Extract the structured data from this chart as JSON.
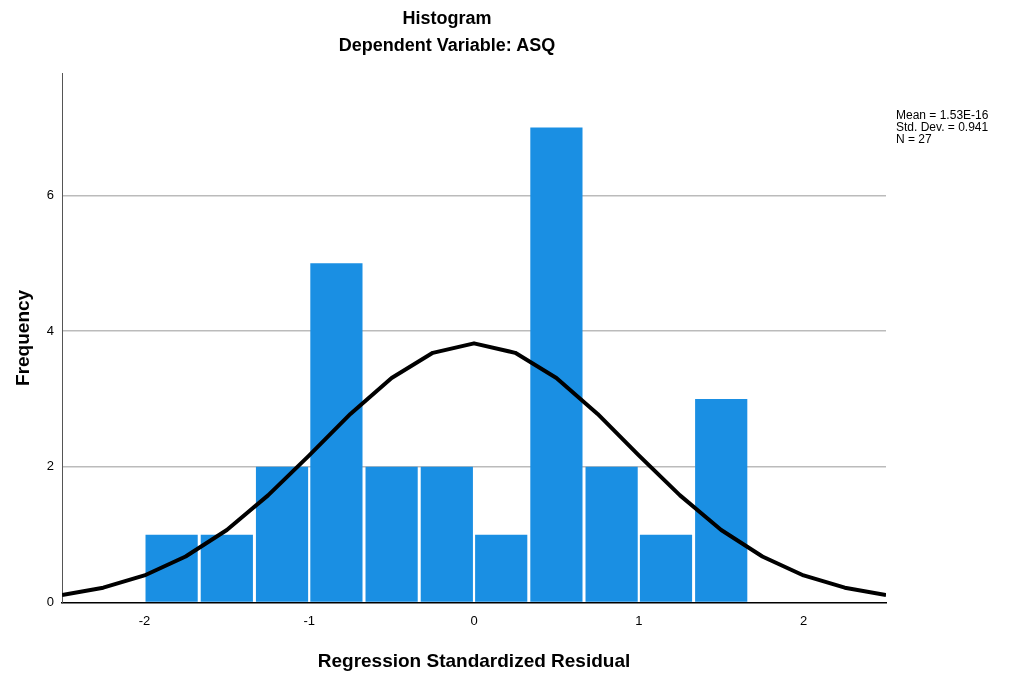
{
  "chart_data": {
    "type": "histogram",
    "title": "Histogram",
    "subtitle": "Dependent Variable: ASQ",
    "xlabel": "Regression Standardized Residual",
    "ylabel": "Frequency",
    "bins": [
      -2,
      -1.67,
      -1.33,
      -1,
      -0.67,
      -0.33,
      0,
      0.33,
      0.67,
      1,
      1.33,
      1.67
    ],
    "values": [
      1,
      1,
      2,
      5,
      2,
      2,
      1,
      7,
      2,
      1,
      3
    ],
    "color": "#1a8fe3",
    "series": [
      {
        "type": "line",
        "color": "#000000",
        "x": [
          -2.5,
          -2.25,
          -2,
          -1.75,
          -1.5,
          -1.25,
          -1,
          -0.75,
          -0.5,
          -0.25,
          0,
          0.25,
          0.5,
          0.75,
          1,
          1.25,
          1.5,
          1.75,
          2,
          2.25,
          2.5
        ],
        "values": [
          0.11,
          0.22,
          0.4,
          0.68,
          1.07,
          1.58,
          2.17,
          2.78,
          3.31,
          3.68,
          3.82,
          3.68,
          3.31,
          2.78,
          2.17,
          1.58,
          1.07,
          0.68,
          0.4,
          0.22,
          0.11
        ]
      }
    ],
    "xlim": [
      -2.5,
      2.5
    ],
    "xticks": [
      -2,
      -1,
      0,
      1,
      2
    ],
    "ylim": [
      0,
      7.8
    ],
    "yticks": [
      0,
      2,
      4,
      6
    ],
    "grid": "y",
    "marker": "none",
    "annotations": [
      "Mean = 1.53E-16",
      "Std. Dev. = 0.941",
      "N = 27"
    ]
  }
}
